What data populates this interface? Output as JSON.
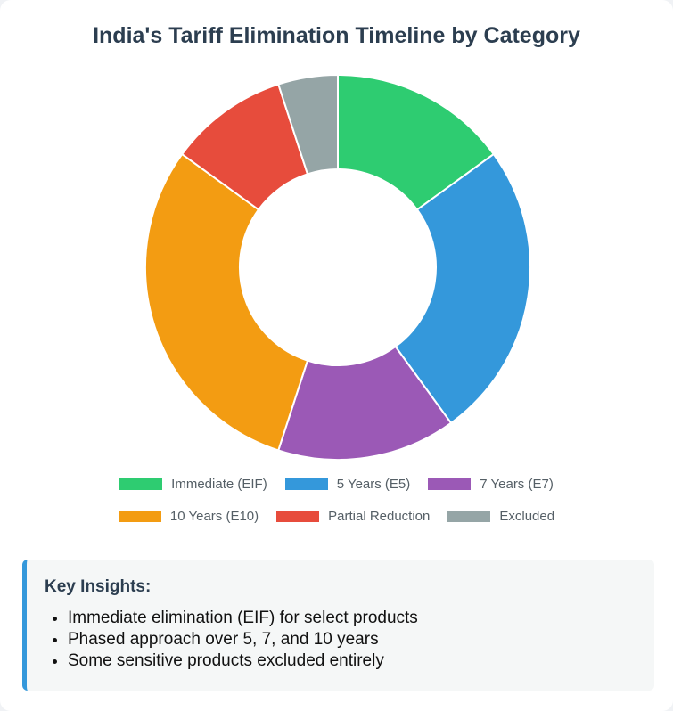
{
  "title": "India's Tariff Elimination Timeline by Category",
  "chart_data": {
    "type": "pie",
    "subtype": "doughnut",
    "title": "India's Tariff Elimination Timeline by Category",
    "series": [
      {
        "name": "Immediate (EIF)",
        "value": 15,
        "color": "#2ecc71"
      },
      {
        "name": "5 Years (E5)",
        "value": 25,
        "color": "#3498db"
      },
      {
        "name": "7 Years (E7)",
        "value": 15,
        "color": "#9b59b6"
      },
      {
        "name": "10 Years (E10)",
        "value": 30,
        "color": "#f39c12"
      },
      {
        "name": "Partial Reduction",
        "value": 10,
        "color": "#e74c3c"
      },
      {
        "name": "Excluded",
        "value": 5,
        "color": "#95a5a6"
      }
    ],
    "legend": "bottom"
  },
  "insights": {
    "heading": "Key Insights:",
    "items": [
      "Immediate elimination (EIF) for select products",
      "Phased approach over 5, 7, and 10 years",
      "Some sensitive products excluded entirely"
    ],
    "accent_color": "#3498db"
  }
}
